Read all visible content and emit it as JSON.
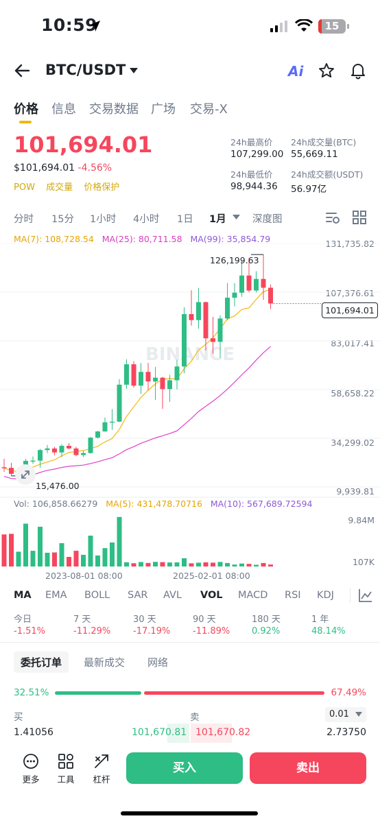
{
  "status_bar": {
    "time": "10:59",
    "battery": "15"
  },
  "header": {
    "pair": "BTC/USDT",
    "ai_label": "Ai"
  },
  "tabs": [
    "价格",
    "信息",
    "交易数据",
    "广场",
    "交易-X"
  ],
  "ticker": {
    "last_price": "101,694.01",
    "usd_price": "$101,694.01",
    "change": "-4.56%",
    "tags": [
      "POW",
      "成交量",
      "价格保护"
    ],
    "high_label": "24h最高价",
    "high_value": "107,299.00",
    "vol_btc_label": "24h成交量(BTC)",
    "vol_btc_value": "55,669.11",
    "low_label": "24h最低价",
    "low_value": "98,944.36",
    "vol_usdt_label": "24h成交额(USDT)",
    "vol_usdt_value": "56.97亿"
  },
  "intervals": [
    "分时",
    "15分",
    "1小时",
    "4小时",
    "1日",
    "1月",
    "深度图"
  ],
  "active_interval": "1月",
  "ma_legend": {
    "ma7": "MA(7): 108,728.54",
    "ma25": "MA(25): 80,711.58",
    "ma99": "MA(99): 35,854.79"
  },
  "price_axis": [
    "131,735.82",
    "107,376.61",
    "83,017.41",
    "58,658.22",
    "34,299.02",
    "9,939.81"
  ],
  "current_price_tag": "101,694.01",
  "high_marker": "126,199.63",
  "low_marker": "15,476.00",
  "watermark": "BINANCE",
  "vol_legend": {
    "vol": "Vol: 106,858.66279",
    "ma5": "MA(5): 431,478.70716",
    "ma10": "MA(10): 567,689.72594"
  },
  "vol_axis": {
    "top": "9.84M",
    "bottom": "107K"
  },
  "time_axis": [
    "2023-08-01 08:00",
    "2025-02-01 08:00"
  ],
  "indicators": [
    "MA",
    "EMA",
    "BOLL",
    "SAR",
    "AVL",
    "VOL",
    "MACD",
    "RSI",
    "KDJ"
  ],
  "performance": [
    {
      "label": "今日",
      "value": "-1.51%"
    },
    {
      "label": "7 天",
      "value": "-11.29%"
    },
    {
      "label": "30 天",
      "value": "-17.19%"
    },
    {
      "label": "90 天",
      "value": "-11.89%"
    },
    {
      "label": "180 天",
      "value": "0.92%"
    },
    {
      "label": "1 年",
      "value": "48.14%"
    }
  ],
  "order_tabs": [
    "委托订单",
    "最新成交",
    "网络"
  ],
  "order_book": {
    "buy_pct": "32.51%",
    "sell_pct": "67.49%",
    "buy_ratio": 0.3251,
    "buy_label": "买",
    "sell_label": "卖",
    "precision": "0.01",
    "bid_qty": "1.41056",
    "bid_price": "101,670.81",
    "ask_price": "101,670.82",
    "ask_qty": "2.73750"
  },
  "bottom_bar": {
    "more": "更多",
    "tools": "工具",
    "leverage": "杠杆",
    "buy": "买入",
    "sell": "卖出"
  },
  "colors": {
    "up": "#2ebd85",
    "down": "#f6465d",
    "ma7": "#f0b90b",
    "ma25": "#e040c8",
    "ma99": "#8d5ad6",
    "accent": "#f0b90b"
  },
  "chart_data": {
    "type": "candlestick",
    "interval": "1月",
    "time_labels": [
      "2023-08-01 08:00",
      "2025-02-01 08:00"
    ],
    "yaxis_ticks": [
      131735.82,
      107376.61,
      83017.41,
      58658.22,
      34299.02,
      9939.81
    ],
    "ylim": [
      9939.81,
      131735.82
    ],
    "series_names": [
      "MA(7)",
      "MA(25)",
      "MA(99)"
    ],
    "candles": [
      {
        "o": 19800,
        "h": 24000,
        "l": 17500,
        "c": 19500
      },
      {
        "o": 19500,
        "h": 22000,
        "l": 15476,
        "c": 16500
      },
      {
        "o": 16500,
        "h": 18400,
        "l": 15900,
        "c": 17100
      },
      {
        "o": 17100,
        "h": 24000,
        "l": 16500,
        "c": 23000
      },
      {
        "o": 23000,
        "h": 25200,
        "l": 21500,
        "c": 23100
      },
      {
        "o": 23100,
        "h": 29000,
        "l": 19600,
        "c": 28400
      },
      {
        "o": 28400,
        "h": 30900,
        "l": 26900,
        "c": 29200
      },
      {
        "o": 29200,
        "h": 30000,
        "l": 25800,
        "c": 27200
      },
      {
        "o": 27200,
        "h": 31400,
        "l": 24900,
        "c": 30500
      },
      {
        "o": 30500,
        "h": 31800,
        "l": 28800,
        "c": 29200
      },
      {
        "o": 29200,
        "h": 30000,
        "l": 25300,
        "c": 25900
      },
      {
        "o": 25900,
        "h": 28000,
        "l": 24900,
        "c": 26900
      },
      {
        "o": 26900,
        "h": 35000,
        "l": 26500,
        "c": 34600
      },
      {
        "o": 34600,
        "h": 38000,
        "l": 34100,
        "c": 37700
      },
      {
        "o": 37700,
        "h": 44700,
        "l": 37600,
        "c": 42300
      },
      {
        "o": 42300,
        "h": 48900,
        "l": 38500,
        "c": 42600
      },
      {
        "o": 42600,
        "h": 63900,
        "l": 42300,
        "c": 61100
      },
      {
        "o": 61100,
        "h": 73800,
        "l": 59000,
        "c": 71300
      },
      {
        "o": 71300,
        "h": 72800,
        "l": 59600,
        "c": 60600
      },
      {
        "o": 60600,
        "h": 71900,
        "l": 56500,
        "c": 67500
      },
      {
        "o": 67500,
        "h": 72000,
        "l": 58400,
        "c": 62700
      },
      {
        "o": 62700,
        "h": 70000,
        "l": 53500,
        "c": 64600
      },
      {
        "o": 64600,
        "h": 65000,
        "l": 49000,
        "c": 58900
      },
      {
        "o": 58900,
        "h": 66000,
        "l": 52500,
        "c": 63300
      },
      {
        "o": 63300,
        "h": 73600,
        "l": 58800,
        "c": 70200
      },
      {
        "o": 70200,
        "h": 99800,
        "l": 66800,
        "c": 96400
      },
      {
        "o": 96400,
        "h": 108300,
        "l": 90700,
        "c": 93400
      },
      {
        "o": 93400,
        "h": 109500,
        "l": 89100,
        "c": 102400
      },
      {
        "o": 102400,
        "h": 102600,
        "l": 78200,
        "c": 84300
      },
      {
        "o": 84300,
        "h": 95000,
        "l": 76600,
        "c": 82500
      },
      {
        "o": 82500,
        "h": 95800,
        "l": 74500,
        "c": 94200
      },
      {
        "o": 94200,
        "h": 112000,
        "l": 93300,
        "c": 104600
      },
      {
        "o": 104600,
        "h": 111900,
        "l": 100300,
        "c": 107100
      },
      {
        "o": 107100,
        "h": 123200,
        "l": 105100,
        "c": 115700
      },
      {
        "o": 115700,
        "h": 124400,
        "l": 107300,
        "c": 108200
      },
      {
        "o": 108200,
        "h": 117900,
        "l": 107200,
        "c": 114000
      },
      {
        "o": 114000,
        "h": 126199.63,
        "l": 103500,
        "c": 109600
      },
      {
        "o": 109600,
        "h": 111200,
        "l": 98944.36,
        "c": 101694.01
      }
    ],
    "volume_range": [
      "107K",
      "9.84M"
    ]
  }
}
